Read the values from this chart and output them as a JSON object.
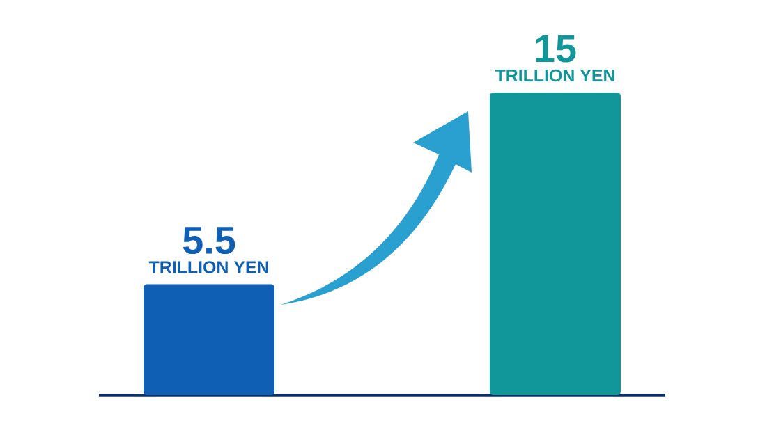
{
  "chart_data": {
    "type": "bar",
    "categories": [
      null,
      null
    ],
    "values": [
      5.5,
      15
    ],
    "colors": [
      "#0f5fb4",
      "#11979a"
    ],
    "value_labels": [
      "5.5",
      "15"
    ],
    "annotations": [
      {
        "text": "TRILLION YEN",
        "y": 5.5
      },
      {
        "text": "TRILLION YEN",
        "y": 15
      }
    ]
  }
}
